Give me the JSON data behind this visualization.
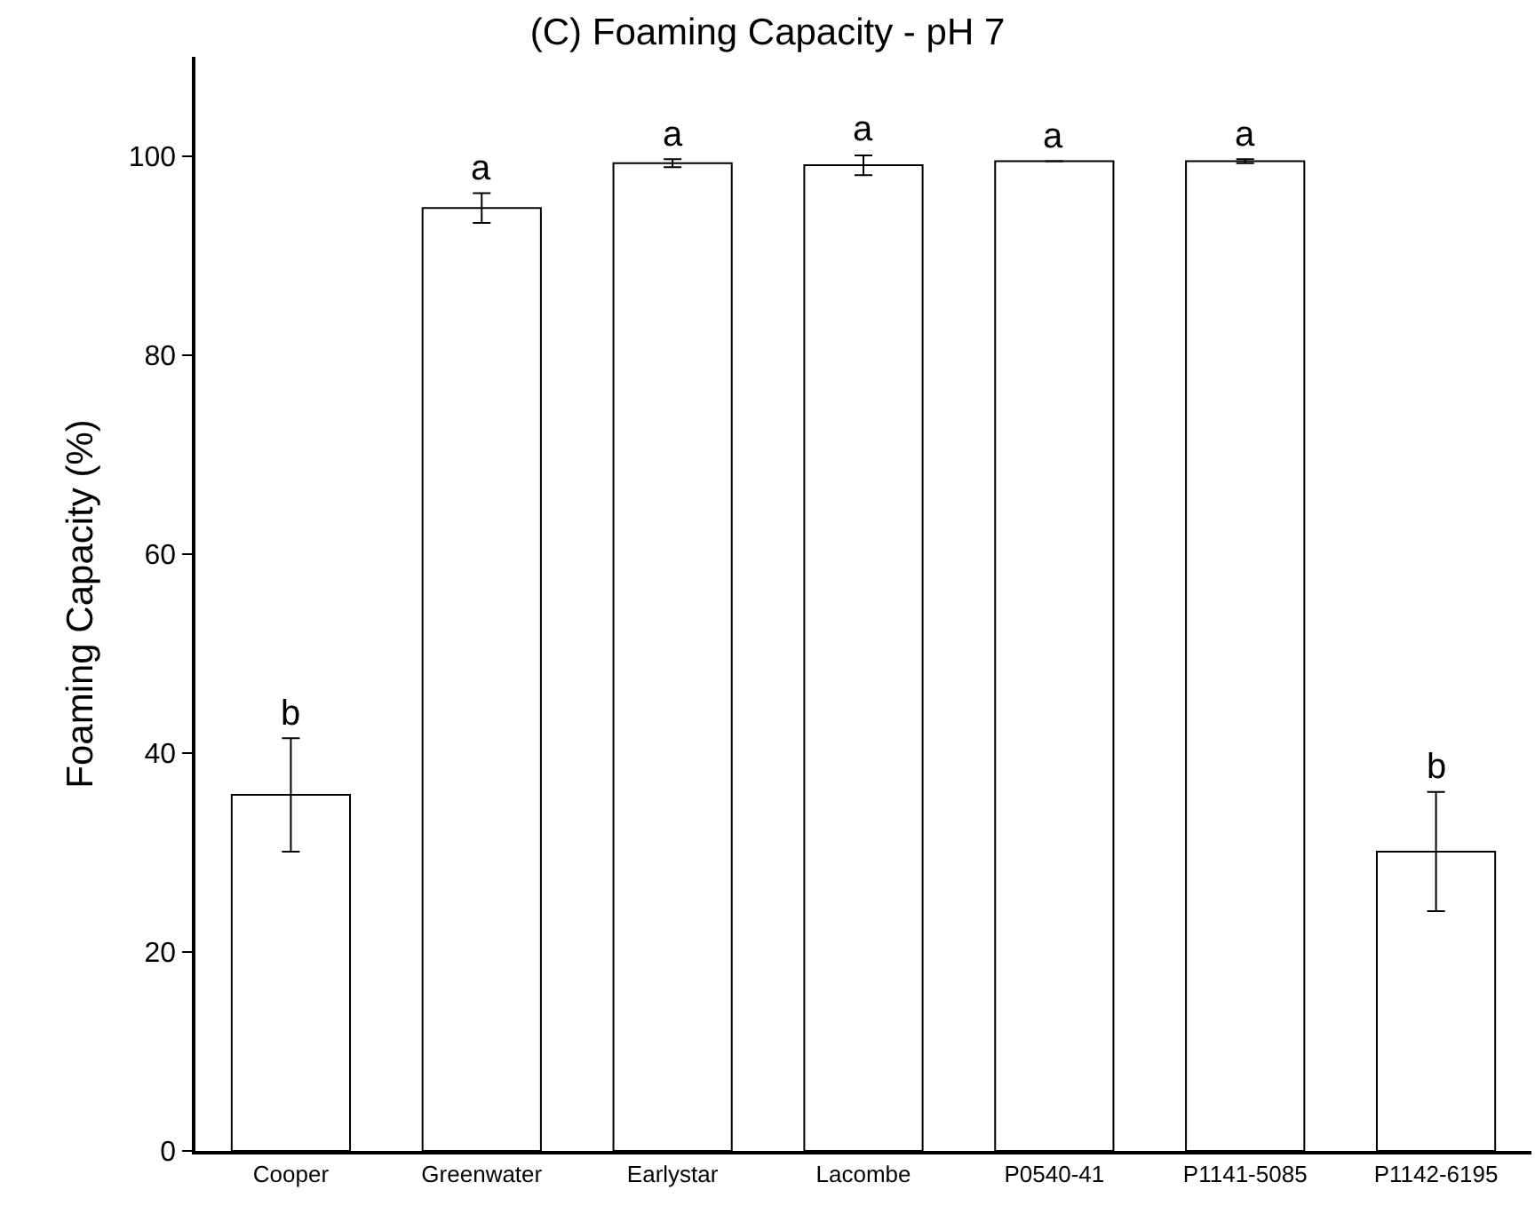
{
  "chart_data": {
    "type": "bar",
    "title": "(C) Foaming Capacity - pH 7",
    "ylabel": "Foaming Capacity (%)",
    "categories": [
      "Cooper",
      "Greenwater",
      "Earlystar",
      "Lacombe",
      "P0540-41",
      "P1141-5085",
      "P1142-6195"
    ],
    "values": [
      35.8,
      94.8,
      99.3,
      99.1,
      99.5,
      99.5,
      30.1
    ],
    "errors": [
      5.7,
      1.5,
      0.4,
      1.0,
      null,
      0.2,
      6.0
    ],
    "color": "#ffffff",
    "ylim": [
      0,
      110
    ],
    "yticks": [
      0,
      20,
      40,
      60,
      80,
      100
    ],
    "annotations": [
      {
        "text": "b",
        "x": "Cooper",
        "y": 41.5
      },
      {
        "text": "a",
        "x": "Greenwater",
        "y": 96.3
      },
      {
        "text": "a",
        "x": "Earlystar",
        "y": 99.7
      },
      {
        "text": "a",
        "x": "Lacombe",
        "y": 100.1
      },
      {
        "text": "a",
        "x": "P0540-41",
        "y": 99.5
      },
      {
        "text": "a",
        "x": "P1141-5085",
        "y": 99.7
      },
      {
        "text": "b",
        "x": "P1142-6195",
        "y": 36.1
      }
    ]
  }
}
